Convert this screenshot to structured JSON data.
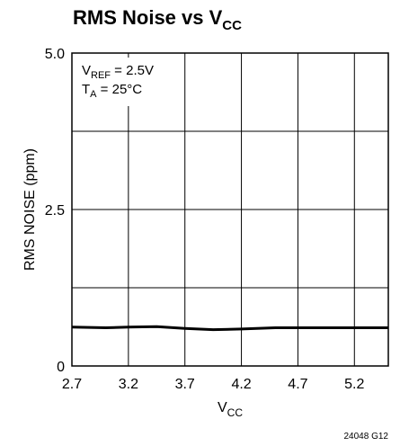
{
  "chart_data": {
    "type": "line",
    "title": {
      "main": "RMS Noise vs V",
      "sub": "CC"
    },
    "xlabel": {
      "main": "V",
      "sub": "CC"
    },
    "ylabel": "RMS NOISE (ppm)",
    "x_ticks": [
      "2.7",
      "3.2",
      "3.7",
      "4.2",
      "4.7",
      "5.2"
    ],
    "y_ticks": [
      "0",
      "2.5",
      "5.0"
    ],
    "xlim": [
      2.7,
      5.5
    ],
    "ylim": [
      0,
      5.0
    ],
    "x_grid": [
      2.7,
      3.2,
      3.7,
      4.2,
      4.7,
      5.2
    ],
    "y_grid": [
      0,
      1.25,
      2.5,
      3.75,
      5.0
    ],
    "grid": true,
    "series": [
      {
        "x": [
          2.7,
          3.0,
          3.2,
          3.45,
          3.7,
          3.95,
          4.2,
          4.5,
          4.7,
          5.0,
          5.2,
          5.5
        ],
        "y": [
          0.62,
          0.61,
          0.62,
          0.63,
          0.6,
          0.58,
          0.59,
          0.61,
          0.61,
          0.61,
          0.61,
          0.61
        ],
        "color": "#000000"
      }
    ],
    "annotations": [
      {
        "main": "V",
        "sub": "REF",
        "rest": " = 2.5V"
      },
      {
        "main": "T",
        "sub": "A",
        "rest": " = 25°C"
      }
    ],
    "figure_id": "24048 G12"
  }
}
